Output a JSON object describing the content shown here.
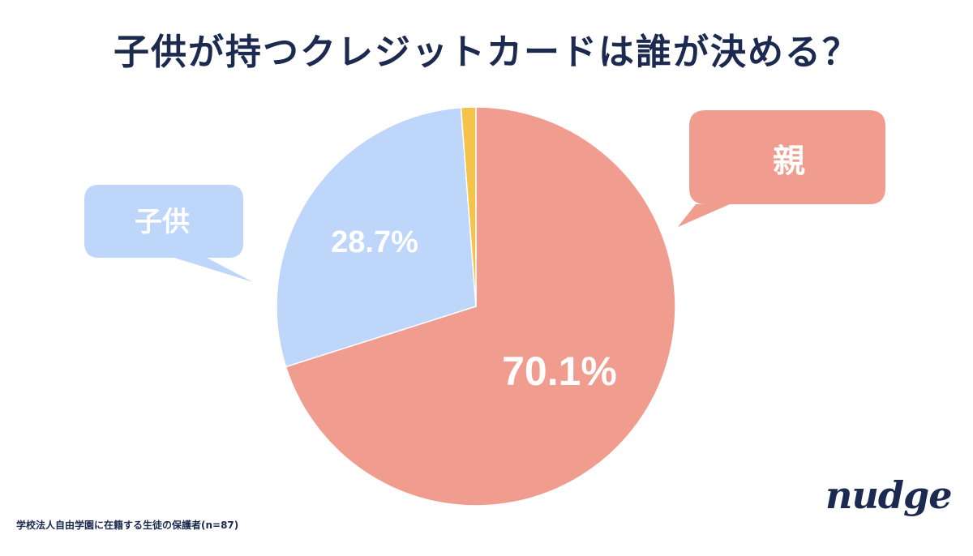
{
  "title": "子供が持つクレジットカードは誰が決める？",
  "source": "学校法人自由学園に在籍する生徒の保護者(n=87)",
  "logo": "nudge",
  "chart_data": {
    "type": "pie",
    "start_angle_deg": 0,
    "direction": "clockwise",
    "slices": [
      {
        "label": "親",
        "value": 70.1,
        "value_label": "70.1%",
        "color": "#f09c8f"
      },
      {
        "label": "子供",
        "value": 28.7,
        "value_label": "28.7%",
        "color": "#bdd6f9"
      },
      {
        "label": "",
        "value": 1.2,
        "value_label": "",
        "color": "#f3c34c"
      }
    ],
    "legend": "callout-bubbles"
  }
}
